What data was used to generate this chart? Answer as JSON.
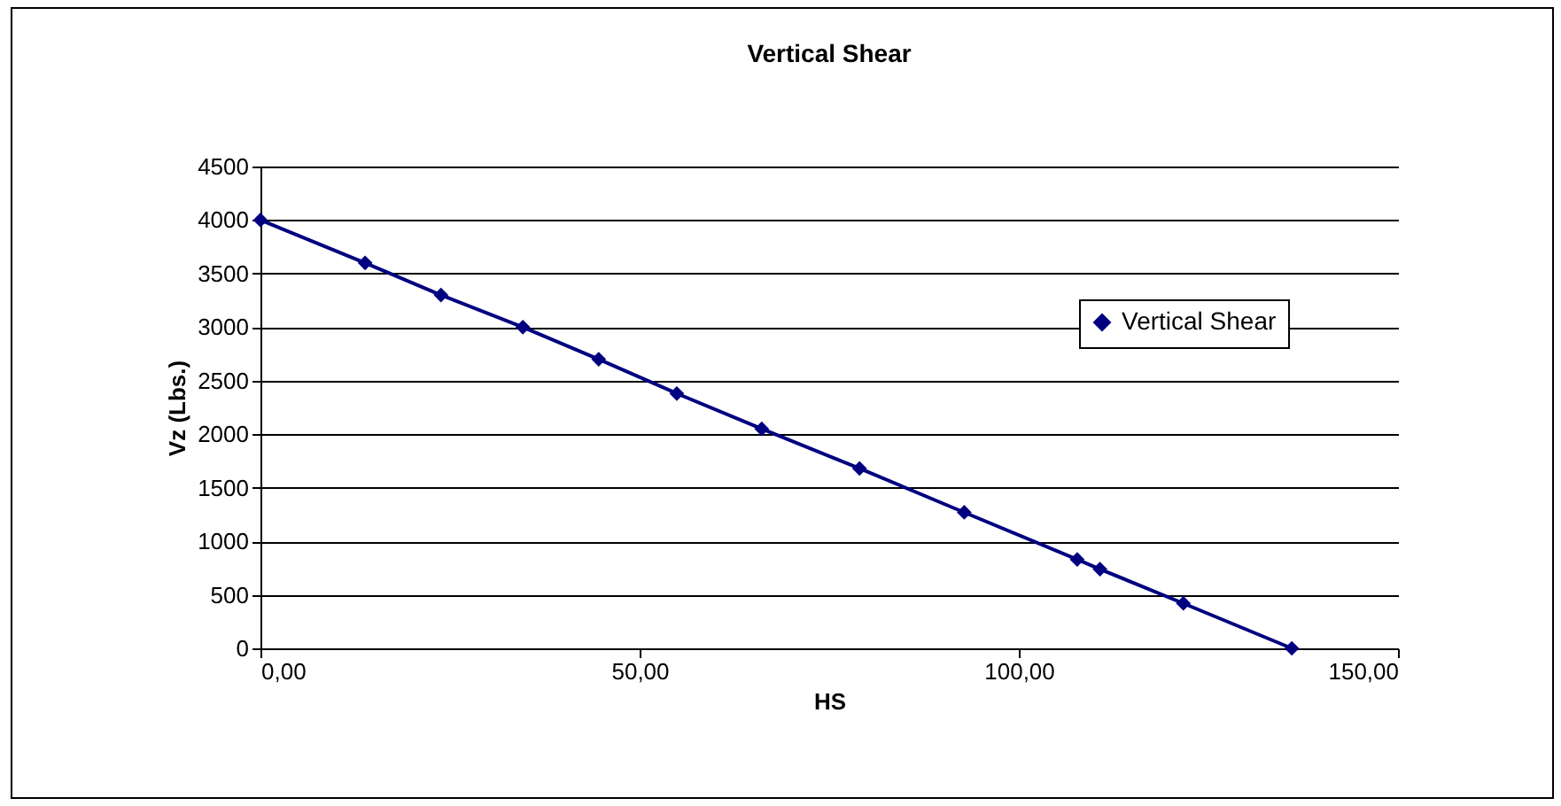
{
  "chart_data": {
    "type": "line",
    "title": "Vertical Shear",
    "xlabel": "HS",
    "ylabel": "Vz (Lbs.)",
    "x": [
      0,
      13.8,
      23.8,
      34.6,
      44.6,
      54.9,
      66.1,
      79.0,
      92.8,
      107.7,
      110.7,
      121.7,
      136.0
    ],
    "series": [
      {
        "name": "Vertical Shear",
        "color": "#000080",
        "values": [
          4000,
          3600,
          3300,
          3000,
          2700,
          2380,
          2050,
          1680,
          1270,
          830,
          740,
          420,
          0
        ]
      }
    ],
    "xlim": [
      0,
      150
    ],
    "xticks": [
      {
        "value": 0,
        "label": "0,00"
      },
      {
        "value": 50,
        "label": "50,00"
      },
      {
        "value": 100,
        "label": "100,00"
      },
      {
        "value": 150,
        "label": "150,00"
      }
    ],
    "ylim": [
      0,
      4500
    ],
    "yticks": [
      0,
      500,
      1000,
      1500,
      2000,
      2500,
      3000,
      3500,
      4000,
      4500
    ],
    "grid": "y",
    "legend": "right",
    "marker": "diamond",
    "line_style": "solid"
  }
}
